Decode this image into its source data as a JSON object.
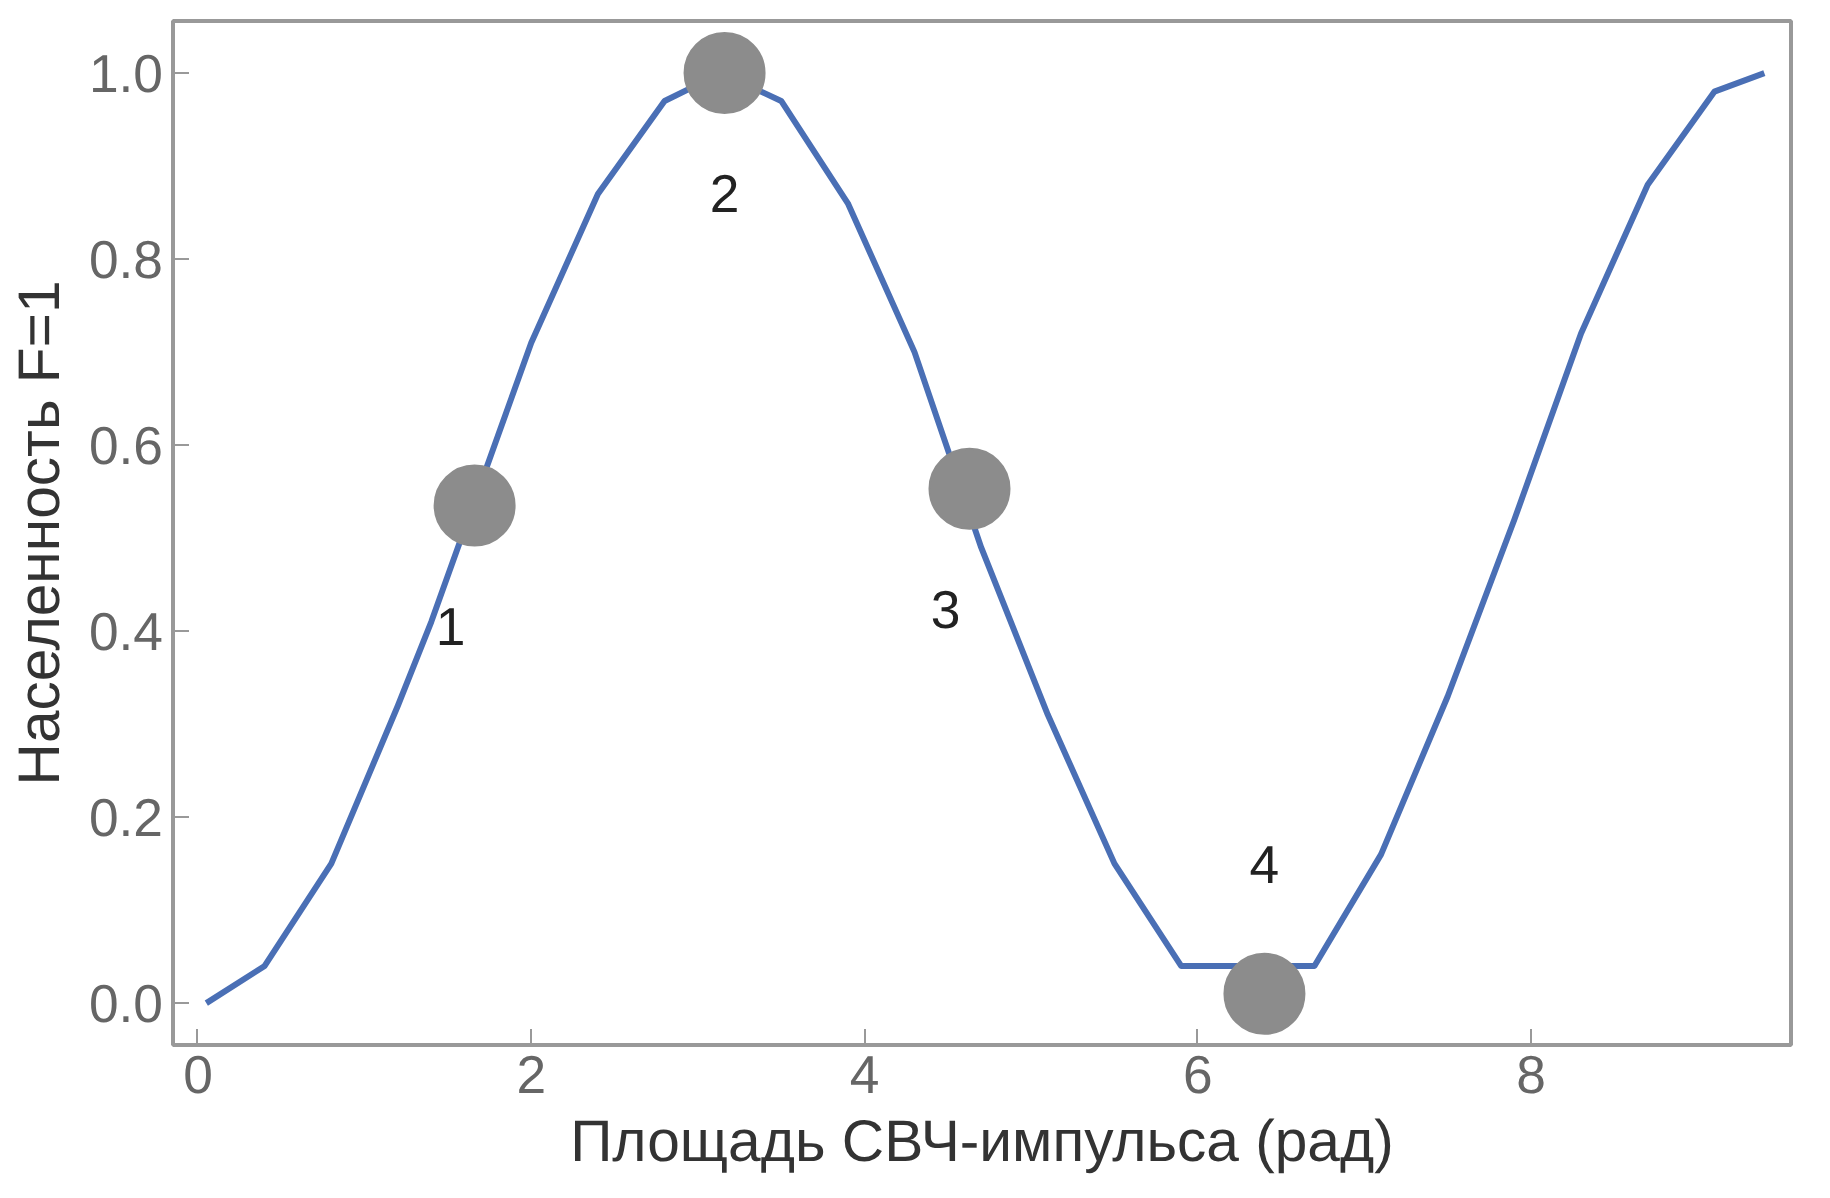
{
  "chart_data": {
    "type": "line",
    "xlabel": "Площадь СВЧ-импульса (рад)",
    "ylabel": "Населенность F=1",
    "xlim": [
      -0.15,
      9.56
    ],
    "ylim": [
      -0.045,
      1.056
    ],
    "xticks": [
      0,
      2,
      4,
      6,
      8
    ],
    "yticks": [
      {
        "value": 0,
        "label": "0.0"
      },
      {
        "value": 0.2,
        "label": "0.2"
      },
      {
        "value": 0.4,
        "label": "0.4"
      },
      {
        "value": 0.6,
        "label": "0.6"
      },
      {
        "value": 0.8,
        "label": "0.8"
      },
      {
        "value": 1,
        "label": "1.0"
      }
    ],
    "grid": false,
    "series": [
      {
        "color": "#4a6fb5",
        "marker": "none",
        "line_style": "solid",
        "x": [
          0.05,
          0.4,
          0.8,
          1.2,
          1.4,
          1.8,
          2.0,
          2.4,
          2.8,
          3.14,
          3.5,
          3.9,
          4.3,
          4.7,
          5.1,
          5.5,
          5.9,
          6.7,
          7.1,
          7.5,
          7.9,
          8.3,
          8.7,
          9.1,
          9.4
        ],
        "values": [
          0.0,
          0.04,
          0.15,
          0.32,
          0.41,
          0.61,
          0.71,
          0.87,
          0.97,
          1.0,
          0.97,
          0.86,
          0.7,
          0.49,
          0.31,
          0.15,
          0.04,
          0.04,
          0.16,
          0.33,
          0.52,
          0.72,
          0.88,
          0.98,
          1.0
        ]
      },
      {
        "type": "scatter",
        "color": "#8c8c8c",
        "marker": "circle",
        "x": [
          1.66,
          3.16,
          4.63,
          6.4
        ],
        "values": [
          0.535,
          1.0,
          0.553,
          0.01
        ]
      }
    ],
    "annotations": [
      {
        "text": "1",
        "x": 1.66,
        "y": 0.535
      },
      {
        "text": "2",
        "x": 3.16,
        "y": 1.0
      },
      {
        "text": "3",
        "x": 4.63,
        "y": 0.553
      },
      {
        "text": "4",
        "x": 6.4,
        "y": 0.01
      }
    ]
  }
}
